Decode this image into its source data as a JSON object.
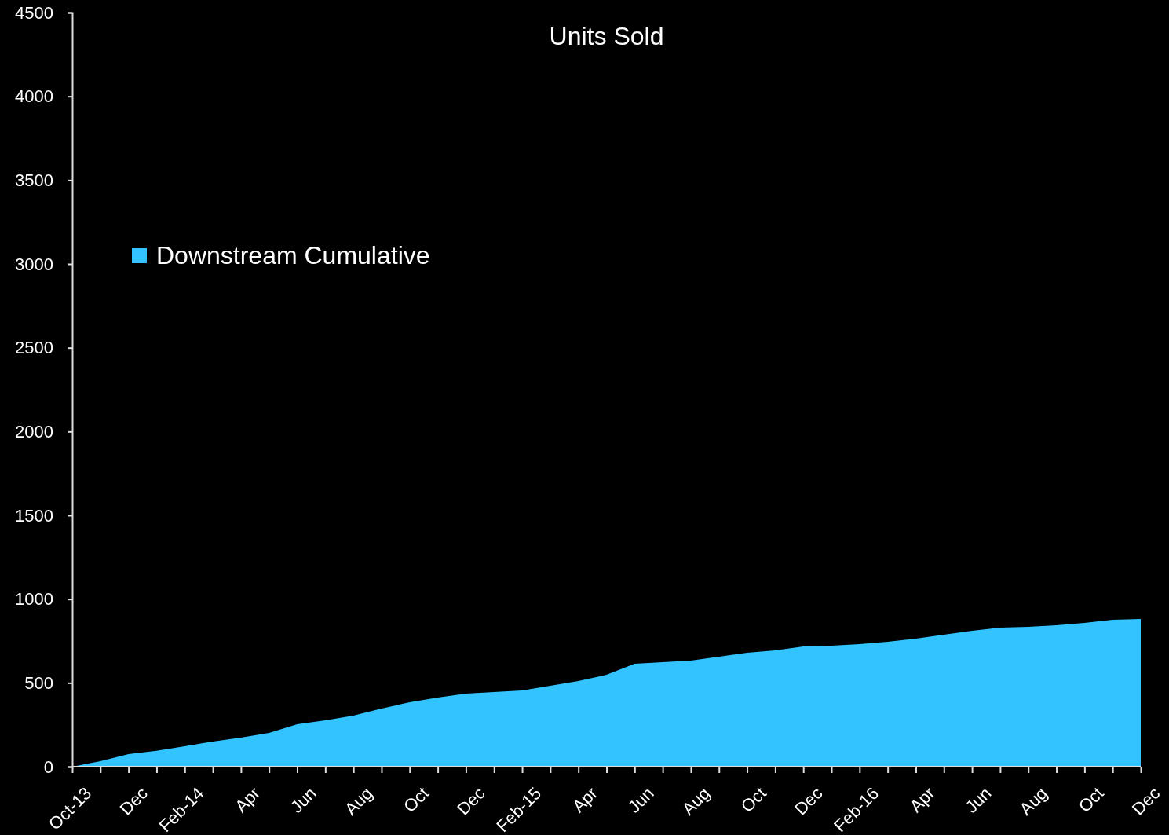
{
  "chart_data": {
    "type": "area",
    "title": "Units Sold",
    "categories": [
      "Oct-13",
      null,
      "Dec",
      null,
      "Feb-14",
      null,
      "Apr",
      null,
      "Jun",
      null,
      "Aug",
      null,
      "Oct",
      null,
      "Dec",
      null,
      "Feb-15",
      null,
      "Apr",
      null,
      "Jun",
      null,
      "Aug",
      null,
      "Oct",
      null,
      "Dec",
      null,
      "Feb-16",
      null,
      "Apr",
      null,
      "Jun",
      null,
      "Aug",
      null,
      "Oct",
      null,
      "Dec"
    ],
    "series": [
      {
        "name": "Downstream Cumulative",
        "color": "#33c4ff",
        "values": [
          0,
          33,
          75,
          95,
          122,
          150,
          173,
          202,
          253,
          277,
          305,
          347,
          384,
          413,
          436,
          445,
          455,
          483,
          511,
          548,
          614,
          623,
          633,
          656,
          680,
          694,
          717,
          722,
          731,
          745,
          764,
          788,
          811,
          830,
          834,
          844,
          858,
          877,
          881
        ]
      }
    ],
    "ylim": [
      0,
      4500
    ],
    "yticks": [
      0,
      500,
      1000,
      1500,
      2000,
      2500,
      3000,
      3500,
      4000,
      4500
    ],
    "grid": false,
    "legend": "top left"
  }
}
